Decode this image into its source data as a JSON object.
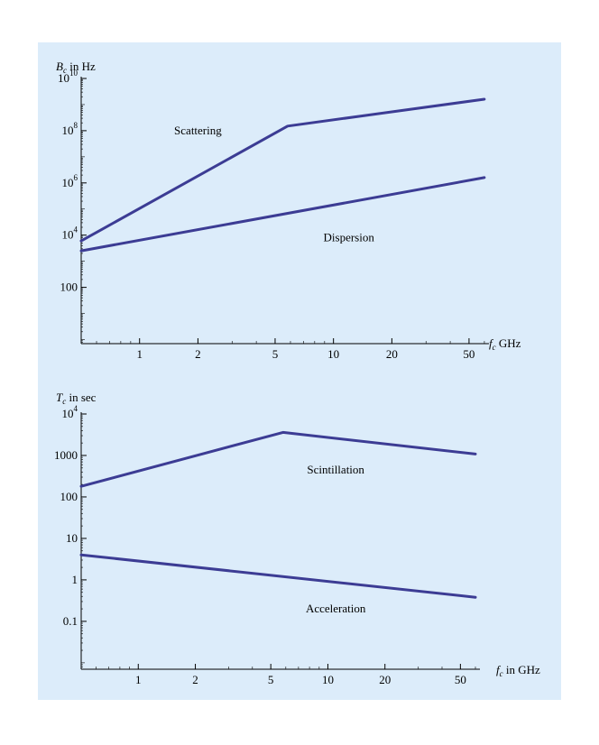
{
  "colors": {
    "panel_bg": "#dcecfa",
    "line": "#3c3c94",
    "axis": "#000000"
  },
  "chart_data": [
    {
      "type": "line",
      "scale": "log-log",
      "ylabel_var": "B",
      "ylabel_sub": "c",
      "ylabel_rest": " in Hz",
      "xlabel_var": "f",
      "xlabel_sub": "c",
      "xlabel_rest": " GHz",
      "xlim": [
        0.5,
        62
      ],
      "ylim": [
        0.7,
        10000000000
      ],
      "x_ticks": [
        {
          "v": 1,
          "label": "1"
        },
        {
          "v": 2,
          "label": "2"
        },
        {
          "v": 5,
          "label": "5"
        },
        {
          "v": 10,
          "label": "10"
        },
        {
          "v": 20,
          "label": "20"
        },
        {
          "v": 50,
          "label": "50"
        }
      ],
      "x_minor": [
        0.6,
        0.7,
        0.8,
        0.9,
        3,
        4,
        6,
        7,
        8,
        9,
        30,
        40,
        60
      ],
      "y_ticks": [
        {
          "v": 100,
          "base": "100",
          "exp": ""
        },
        {
          "v": 10000,
          "base": "10",
          "exp": "4"
        },
        {
          "v": 1000000,
          "base": "10",
          "exp": "6"
        },
        {
          "v": 100000000,
          "base": "10",
          "exp": "8"
        },
        {
          "v": 10000000000,
          "base": "10",
          "exp": "10"
        }
      ],
      "series": [
        {
          "name": "Scattering",
          "x": [
            0.5,
            5.8,
            60
          ],
          "y": [
            6000,
            150000000,
            1600000000
          ]
        },
        {
          "name": "Dispersion",
          "x": [
            0.5,
            60
          ],
          "y": [
            2500,
            1600000
          ]
        }
      ],
      "annotations": [
        {
          "text": "Scattering",
          "x": 2.0,
          "y": 100000000
        },
        {
          "text": "Dispersion",
          "x": 12.0,
          "y": 8000
        }
      ]
    },
    {
      "type": "line",
      "scale": "log-log",
      "ylabel_var": "T",
      "ylabel_sub": "c",
      "ylabel_rest": " in sec",
      "xlabel_var": "f",
      "xlabel_sub": "c",
      "xlabel_rest": " in GHz",
      "xlim": [
        0.5,
        62
      ],
      "ylim": [
        0.007,
        10000
      ],
      "x_ticks": [
        {
          "v": 1,
          "label": "1"
        },
        {
          "v": 2,
          "label": "2"
        },
        {
          "v": 5,
          "label": "5"
        },
        {
          "v": 10,
          "label": "10"
        },
        {
          "v": 20,
          "label": "20"
        },
        {
          "v": 50,
          "label": "50"
        }
      ],
      "x_minor": [
        0.6,
        0.7,
        0.8,
        0.9,
        3,
        4,
        6,
        7,
        8,
        9,
        30,
        40,
        60
      ],
      "y_ticks": [
        {
          "v": 0.1,
          "base": "0.1",
          "exp": ""
        },
        {
          "v": 1,
          "base": "1",
          "exp": ""
        },
        {
          "v": 10,
          "base": "10",
          "exp": ""
        },
        {
          "v": 100,
          "base": "100",
          "exp": ""
        },
        {
          "v": 1000,
          "base": "1000",
          "exp": ""
        },
        {
          "v": 10000,
          "base": "10",
          "exp": "4"
        }
      ],
      "series": [
        {
          "name": "Scintillation",
          "x": [
            0.5,
            5.8,
            60
          ],
          "y": [
            180,
            3600,
            1080
          ]
        },
        {
          "name": "Acceleration",
          "x": [
            0.5,
            60
          ],
          "y": [
            4.0,
            0.38
          ]
        }
      ],
      "annotations": [
        {
          "text": "Scintillation",
          "x": 11.0,
          "y": 450
        },
        {
          "text": "Acceleration",
          "x": 11.0,
          "y": 0.2
        }
      ]
    }
  ]
}
